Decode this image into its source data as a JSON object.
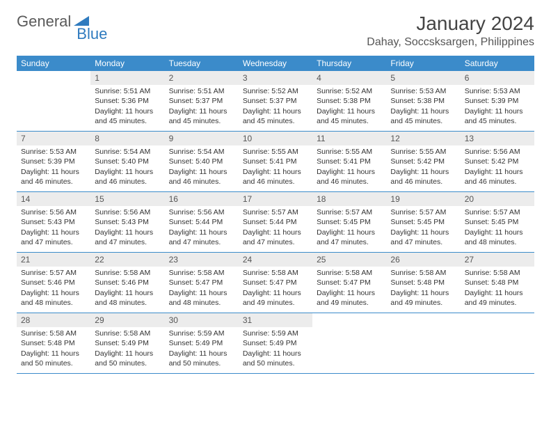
{
  "logo": {
    "text1": "General",
    "text2": "Blue"
  },
  "title": "January 2024",
  "location": "Dahay, Soccsksargen, Philippines",
  "colors": {
    "header_bg": "#3b8bca",
    "header_text": "#ffffff",
    "daynum_bg": "#ececec",
    "border": "#3b8bca",
    "logo_gray": "#5a5a5a",
    "logo_blue": "#2f7bbf",
    "text": "#333333"
  },
  "day_names": [
    "Sunday",
    "Monday",
    "Tuesday",
    "Wednesday",
    "Thursday",
    "Friday",
    "Saturday"
  ],
  "weeks": [
    [
      {
        "n": "",
        "lines": []
      },
      {
        "n": "1",
        "lines": [
          "Sunrise: 5:51 AM",
          "Sunset: 5:36 PM",
          "Daylight: 11 hours and 45 minutes."
        ]
      },
      {
        "n": "2",
        "lines": [
          "Sunrise: 5:51 AM",
          "Sunset: 5:37 PM",
          "Daylight: 11 hours and 45 minutes."
        ]
      },
      {
        "n": "3",
        "lines": [
          "Sunrise: 5:52 AM",
          "Sunset: 5:37 PM",
          "Daylight: 11 hours and 45 minutes."
        ]
      },
      {
        "n": "4",
        "lines": [
          "Sunrise: 5:52 AM",
          "Sunset: 5:38 PM",
          "Daylight: 11 hours and 45 minutes."
        ]
      },
      {
        "n": "5",
        "lines": [
          "Sunrise: 5:53 AM",
          "Sunset: 5:38 PM",
          "Daylight: 11 hours and 45 minutes."
        ]
      },
      {
        "n": "6",
        "lines": [
          "Sunrise: 5:53 AM",
          "Sunset: 5:39 PM",
          "Daylight: 11 hours and 45 minutes."
        ]
      }
    ],
    [
      {
        "n": "7",
        "lines": [
          "Sunrise: 5:53 AM",
          "Sunset: 5:39 PM",
          "Daylight: 11 hours and 46 minutes."
        ]
      },
      {
        "n": "8",
        "lines": [
          "Sunrise: 5:54 AM",
          "Sunset: 5:40 PM",
          "Daylight: 11 hours and 46 minutes."
        ]
      },
      {
        "n": "9",
        "lines": [
          "Sunrise: 5:54 AM",
          "Sunset: 5:40 PM",
          "Daylight: 11 hours and 46 minutes."
        ]
      },
      {
        "n": "10",
        "lines": [
          "Sunrise: 5:55 AM",
          "Sunset: 5:41 PM",
          "Daylight: 11 hours and 46 minutes."
        ]
      },
      {
        "n": "11",
        "lines": [
          "Sunrise: 5:55 AM",
          "Sunset: 5:41 PM",
          "Daylight: 11 hours and 46 minutes."
        ]
      },
      {
        "n": "12",
        "lines": [
          "Sunrise: 5:55 AM",
          "Sunset: 5:42 PM",
          "Daylight: 11 hours and 46 minutes."
        ]
      },
      {
        "n": "13",
        "lines": [
          "Sunrise: 5:56 AM",
          "Sunset: 5:42 PM",
          "Daylight: 11 hours and 46 minutes."
        ]
      }
    ],
    [
      {
        "n": "14",
        "lines": [
          "Sunrise: 5:56 AM",
          "Sunset: 5:43 PM",
          "Daylight: 11 hours and 47 minutes."
        ]
      },
      {
        "n": "15",
        "lines": [
          "Sunrise: 5:56 AM",
          "Sunset: 5:43 PM",
          "Daylight: 11 hours and 47 minutes."
        ]
      },
      {
        "n": "16",
        "lines": [
          "Sunrise: 5:56 AM",
          "Sunset: 5:44 PM",
          "Daylight: 11 hours and 47 minutes."
        ]
      },
      {
        "n": "17",
        "lines": [
          "Sunrise: 5:57 AM",
          "Sunset: 5:44 PM",
          "Daylight: 11 hours and 47 minutes."
        ]
      },
      {
        "n": "18",
        "lines": [
          "Sunrise: 5:57 AM",
          "Sunset: 5:45 PM",
          "Daylight: 11 hours and 47 minutes."
        ]
      },
      {
        "n": "19",
        "lines": [
          "Sunrise: 5:57 AM",
          "Sunset: 5:45 PM",
          "Daylight: 11 hours and 47 minutes."
        ]
      },
      {
        "n": "20",
        "lines": [
          "Sunrise: 5:57 AM",
          "Sunset: 5:45 PM",
          "Daylight: 11 hours and 48 minutes."
        ]
      }
    ],
    [
      {
        "n": "21",
        "lines": [
          "Sunrise: 5:57 AM",
          "Sunset: 5:46 PM",
          "Daylight: 11 hours and 48 minutes."
        ]
      },
      {
        "n": "22",
        "lines": [
          "Sunrise: 5:58 AM",
          "Sunset: 5:46 PM",
          "Daylight: 11 hours and 48 minutes."
        ]
      },
      {
        "n": "23",
        "lines": [
          "Sunrise: 5:58 AM",
          "Sunset: 5:47 PM",
          "Daylight: 11 hours and 48 minutes."
        ]
      },
      {
        "n": "24",
        "lines": [
          "Sunrise: 5:58 AM",
          "Sunset: 5:47 PM",
          "Daylight: 11 hours and 49 minutes."
        ]
      },
      {
        "n": "25",
        "lines": [
          "Sunrise: 5:58 AM",
          "Sunset: 5:47 PM",
          "Daylight: 11 hours and 49 minutes."
        ]
      },
      {
        "n": "26",
        "lines": [
          "Sunrise: 5:58 AM",
          "Sunset: 5:48 PM",
          "Daylight: 11 hours and 49 minutes."
        ]
      },
      {
        "n": "27",
        "lines": [
          "Sunrise: 5:58 AM",
          "Sunset: 5:48 PM",
          "Daylight: 11 hours and 49 minutes."
        ]
      }
    ],
    [
      {
        "n": "28",
        "lines": [
          "Sunrise: 5:58 AM",
          "Sunset: 5:48 PM",
          "Daylight: 11 hours and 50 minutes."
        ]
      },
      {
        "n": "29",
        "lines": [
          "Sunrise: 5:58 AM",
          "Sunset: 5:49 PM",
          "Daylight: 11 hours and 50 minutes."
        ]
      },
      {
        "n": "30",
        "lines": [
          "Sunrise: 5:59 AM",
          "Sunset: 5:49 PM",
          "Daylight: 11 hours and 50 minutes."
        ]
      },
      {
        "n": "31",
        "lines": [
          "Sunrise: 5:59 AM",
          "Sunset: 5:49 PM",
          "Daylight: 11 hours and 50 minutes."
        ]
      },
      {
        "n": "",
        "lines": []
      },
      {
        "n": "",
        "lines": []
      },
      {
        "n": "",
        "lines": []
      }
    ]
  ]
}
